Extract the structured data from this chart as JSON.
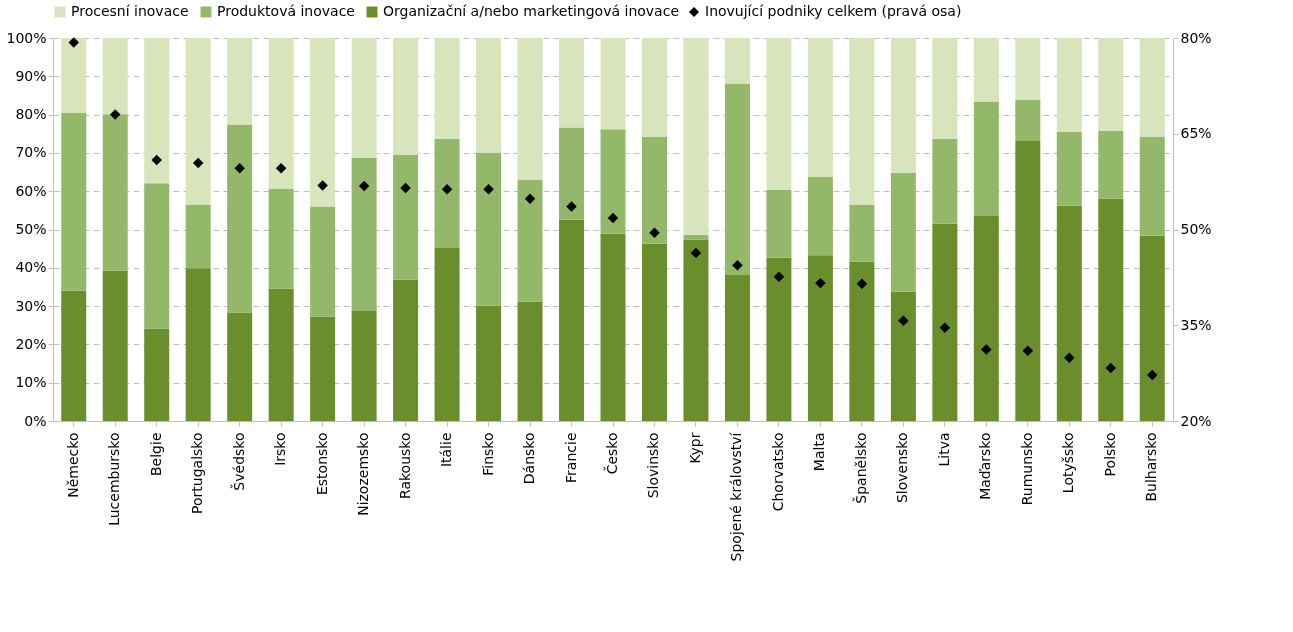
{
  "chart_data": {
    "type": "bar",
    "stacked": true,
    "categories": [
      "Německo",
      "Lucembursko",
      "Belgie",
      "Portugalsko",
      "Švédsko",
      "Irsko",
      "Estonsko",
      "Nizozemsko",
      "Rakousko",
      "Itálie",
      "Finsko",
      "Dánsko",
      "Francie",
      "Česko",
      "Slovinsko",
      "Kypr",
      "Spojené království",
      "Chorvatsko",
      "Malta",
      "Španělsko",
      "Slovensko",
      "Litva",
      "Maďarsko",
      "Rumunsko",
      "Lotyšsko",
      "Polsko",
      "Bulharsko"
    ],
    "series": [
      {
        "name": "Organizační a/nebo marketingová inovace",
        "color": "#6a8e2b",
        "values": [
          34.0,
          39.2,
          24.1,
          39.9,
          28.3,
          34.5,
          27.2,
          28.7,
          36.9,
          45.2,
          30.1,
          31.2,
          52.6,
          48.9,
          46.3,
          47.3,
          38.1,
          42.6,
          43.3,
          41.6,
          33.8,
          51.5,
          53.5,
          73.1,
          56.2,
          58.0,
          48.4
        ]
      },
      {
        "name": "Produktová inovace",
        "color": "#93b86a",
        "values": [
          46.4,
          40.9,
          38.0,
          16.6,
          49.0,
          26.1,
          28.8,
          40.0,
          32.6,
          28.4,
          39.9,
          31.7,
          24.0,
          27.3,
          27.9,
          1.3,
          50.0,
          17.7,
          20.4,
          14.8,
          31.0,
          22.1,
          29.9,
          10.7,
          19.3,
          17.7,
          25.8
        ]
      },
      {
        "name": "Procesní inovace",
        "color": "#d8e4bc",
        "values": [
          19.6,
          19.9,
          37.9,
          43.5,
          22.7,
          39.4,
          44.0,
          31.3,
          30.5,
          26.4,
          30.0,
          37.1,
          23.4,
          23.8,
          25.8,
          51.4,
          11.9,
          39.7,
          36.3,
          43.6,
          35.2,
          26.4,
          16.6,
          16.2,
          24.5,
          24.3,
          25.8
        ]
      },
      {
        "name": "Inovující podniky celkem (pravá osa)",
        "type": "scatter",
        "axis": "y2",
        "marker": "diamond",
        "color": "#000000",
        "values": [
          79.3,
          68.0,
          60.9,
          60.4,
          59.6,
          59.6,
          56.9,
          56.8,
          56.5,
          56.3,
          56.3,
          54.8,
          53.6,
          51.8,
          49.5,
          46.3,
          44.4,
          42.6,
          41.6,
          41.5,
          35.7,
          34.6,
          31.2,
          31.0,
          29.9,
          28.3,
          27.2
        ]
      }
    ],
    "ylim": [
      0,
      100
    ],
    "yticks": [
      {
        "value": 0,
        "label": "0%"
      },
      {
        "value": 10,
        "label": "10%"
      },
      {
        "value": 20,
        "label": "20%"
      },
      {
        "value": 30,
        "label": "30%"
      },
      {
        "value": 40,
        "label": "40%"
      },
      {
        "value": 50,
        "label": "50%"
      },
      {
        "value": 60,
        "label": "60%"
      },
      {
        "value": 70,
        "label": "70%"
      },
      {
        "value": 80,
        "label": "80%"
      },
      {
        "value": 90,
        "label": "90%"
      },
      {
        "value": 100,
        "label": "100%"
      }
    ],
    "y2lim": [
      20,
      80
    ],
    "y2ticks": [
      {
        "value": 20,
        "label": "20%"
      },
      {
        "value": 35,
        "label": "35%"
      },
      {
        "value": 50,
        "label": "50%"
      },
      {
        "value": 65,
        "label": "65%"
      },
      {
        "value": 80,
        "label": "80%"
      }
    ],
    "grid": "y",
    "legend": "top"
  }
}
